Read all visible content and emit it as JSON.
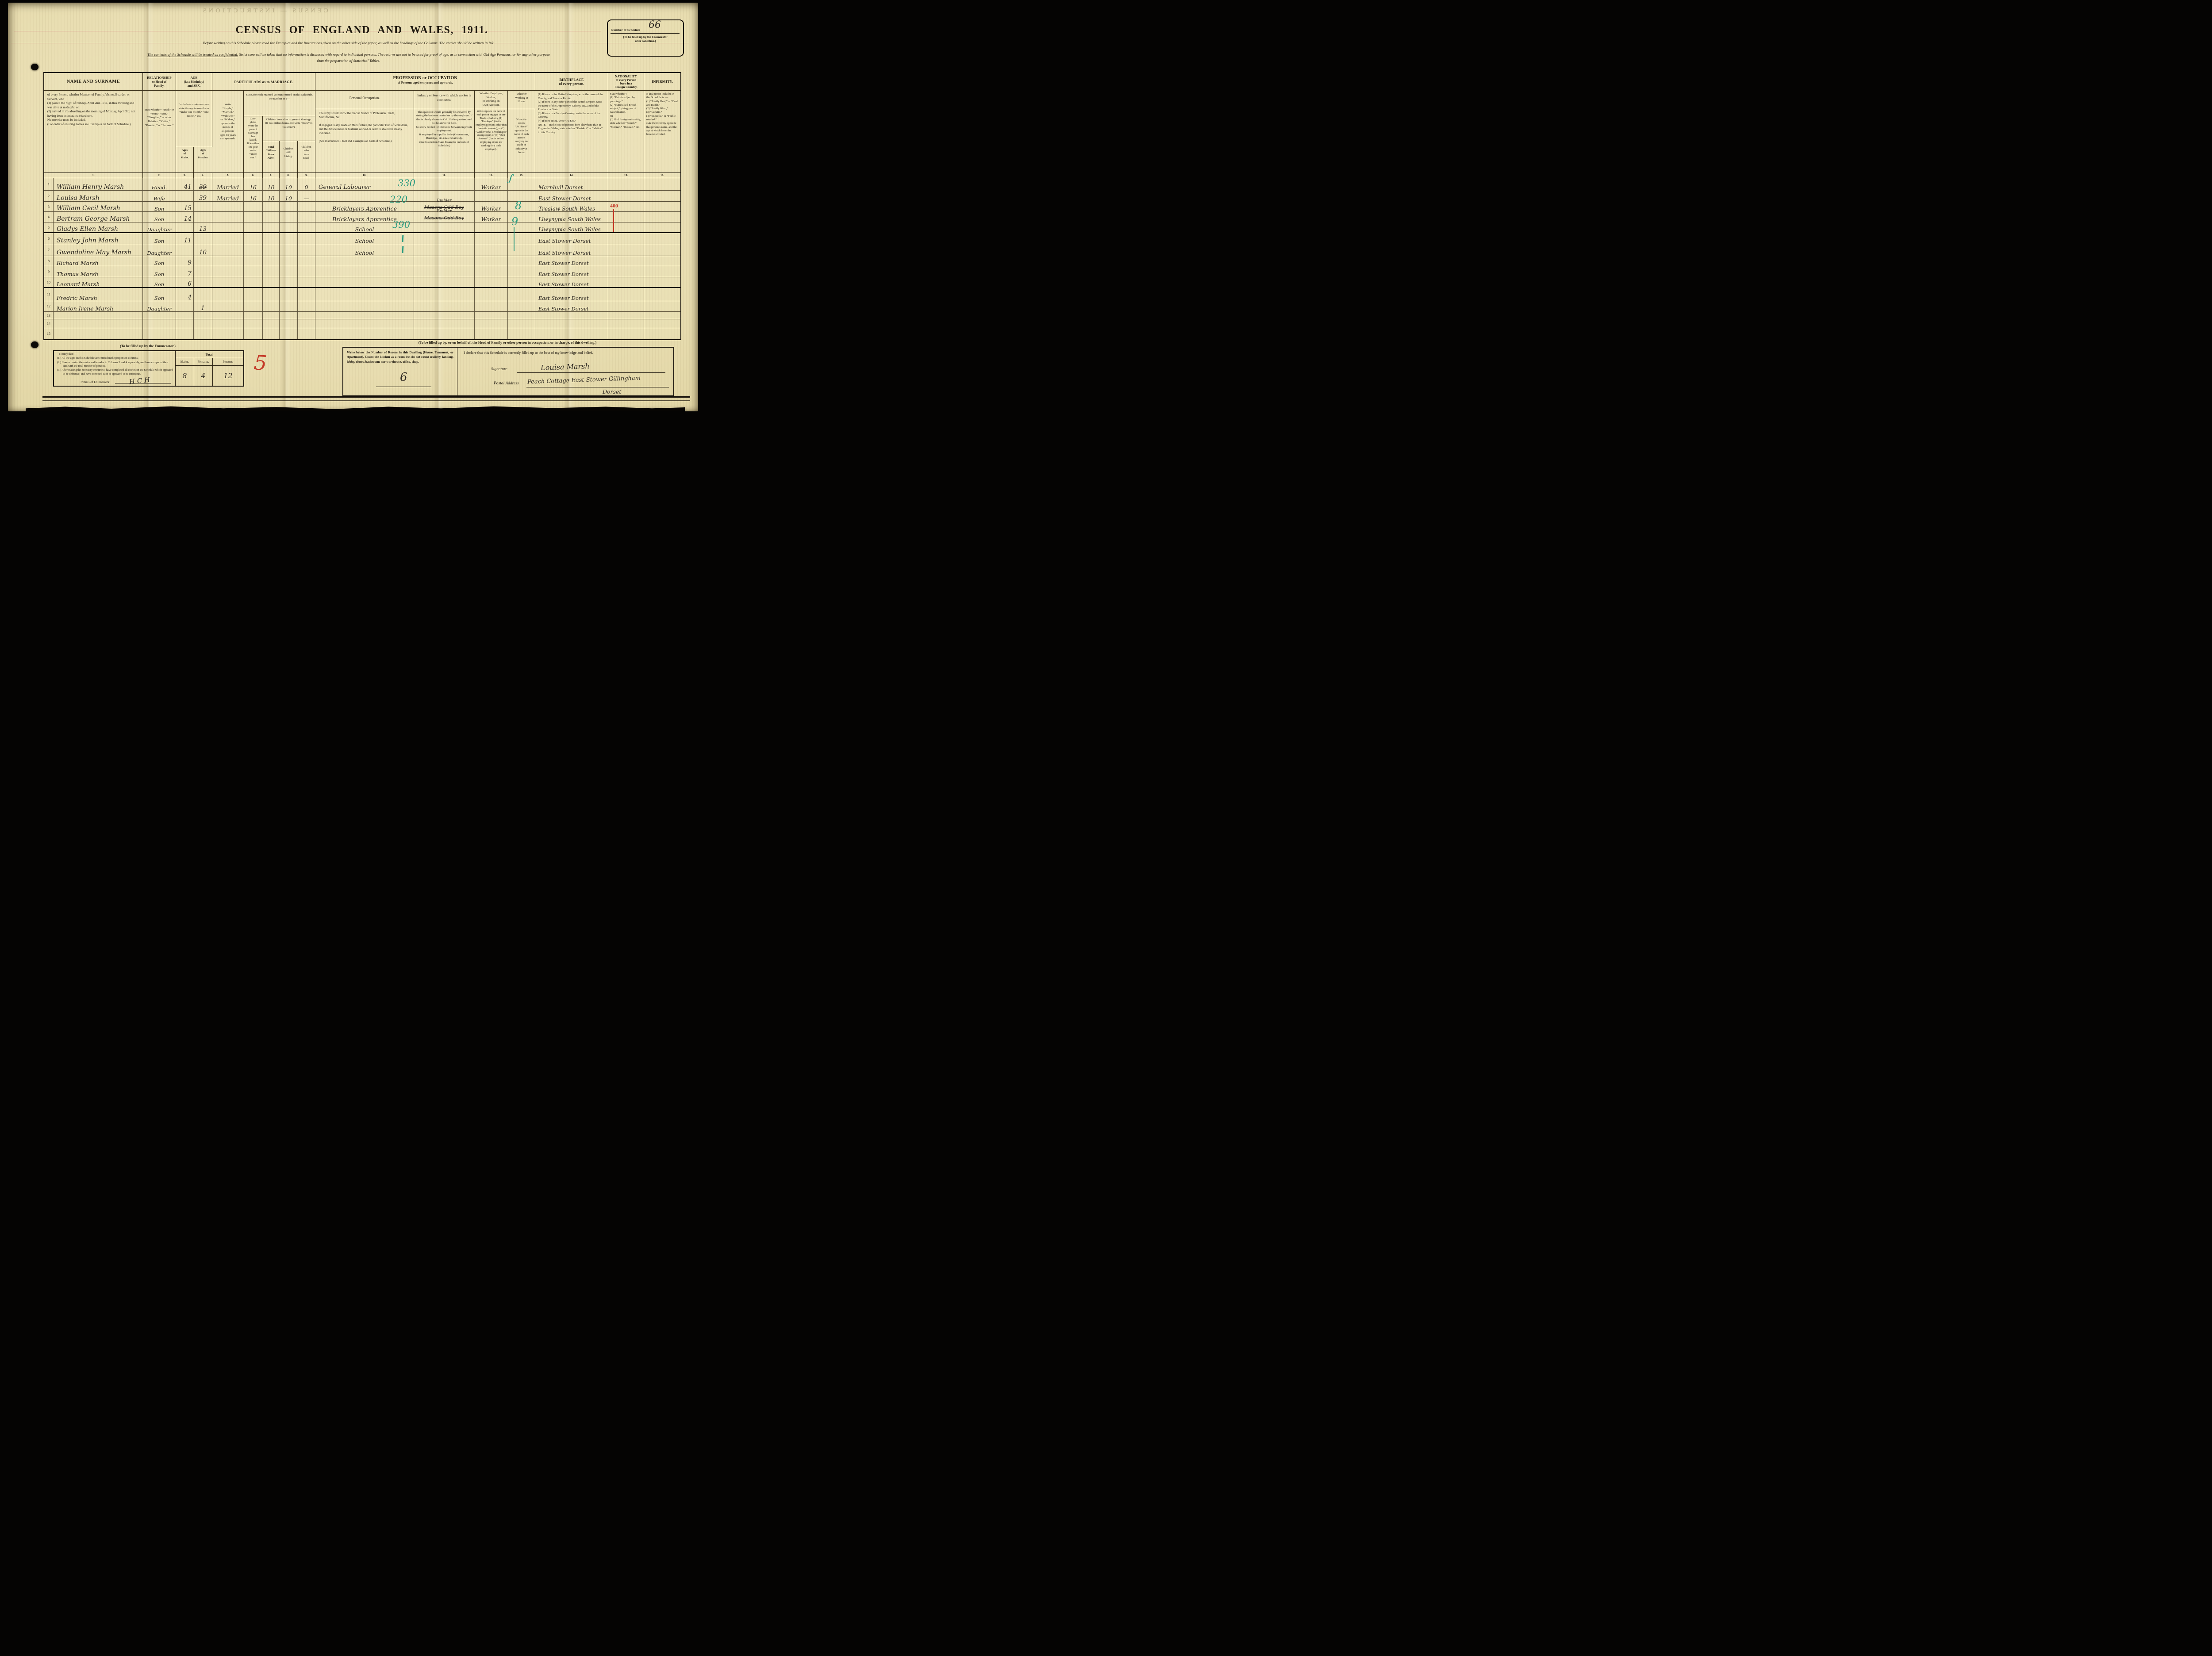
{
  "page": {
    "title": "CENSUS OF ENGLAND AND WALES, 1911.",
    "instructions_line1": "Before writing on this Schedule please read the Examples and the Instructions given on the other side of the paper, as well as the headings of the Columns.  The entries should be written in Ink.",
    "confidential_clause": "The contents of the Schedule will be treated as confidential.",
    "instructions_line2": "Strict care will be taken that no information is disclosed with regard to individual persons.  The returns are not to be used for proof of age, as in connection with Old Age Pensions, or for any other purpose",
    "instructions_line3": "than the preparation of Statistical Tables.",
    "schedule_box": {
      "label": "Number of Schedule",
      "value": "66",
      "note": "(To be filled up by the Enumerator\nafter collection.)"
    },
    "bleedthrough": "CENSUS — INSTRUCTIONS"
  },
  "header": {
    "col1_title": "NAME AND SURNAME",
    "col1_body": "of every Person, whether Member of Family, Visitor, Boarder, or Servant, who\n(1) passed the night of Sunday, April 2nd, 1911, in this dwelling and was alive at midnight, or\n(2) arrived in this dwelling on the morning of Monday, April 3rd, not having been enumerated elsewhere.\nNo one else must be included.\n(For order of entering names see Examples on back of Schedule.)",
    "col2_title": "RELATIONSHIP\nto Head of\nFamily.",
    "col2_body": "State whether “Head,” or “Wife,” “Son,” “Daughter,” or other Relative, “Visitor,” “Boarder,” or “Servant.”",
    "age_title": "AGE\n(last Birthday)\nand SEX.",
    "infants_note": "For Infants under one year state the age in months as “under one month,” “one month,” etc.",
    "ages_males": "Ages\nof\nMales.",
    "ages_females": "Ages\nof\nFemales.",
    "marriage_title": "PARTICULARS as to MARRIAGE.",
    "col5_body": "Write\n“Single,”\n“Married,”\n“Widower,”\nor “Widow,”\nopposite the\nnames of\nall persons\naged 15 years\nand upwards.",
    "married_woman_note": "State, for each Married Woman entered on this Schedule, the number of :—",
    "col6_body": "Com-\npleted\nyears the\npresent\nMarriage\nhas\nlasted.\nIf less than\none year\nwrite\n“under\none.”",
    "children_note": "Children born alive to present Marriage.\n(If no children born alive write “None” in Column 7).",
    "col7_label": "Total\nChildren\nBorn\nAlive.",
    "col8_label": "Children\nstill\nLiving.",
    "col9_label": "Children\nwho\nhave\nDied.",
    "occupation_title": "PROFESSION or OCCUPATION",
    "occupation_subtitle": "of Persons aged ten years and upwards.",
    "col10_title": "Personal Occupation.",
    "col10_body": "The reply should show the precise branch of Profession, Trade, Manufacture, &c.\n\nIf engaged in any Trade or Manufacture, the particular kind of work done, and the Article made or Material worked or dealt in should be clearly indicated.\n\n(See Instructions 1 to 8 and Examples on back of Schedule.)",
    "col11_title": "Industry or Service with which worker is connected.",
    "col11_body": "This question should generally be answered by stating the business carried on by the employer.  If this is clearly shown in Col. 10 the question need not be answered here.\nNo entry needed for Domestic Servants in private employment.\nIf employed by a public body (Government, Municipal, etc.) state what body.\n(See Instruction 9 and Examples on back of Schedule.)",
    "col12_title": "Whether Employer,\nWorker,\nor Working on\nOwn Account.",
    "col12_body": "Write opposite the name of each person engaged in any Trade or Industry, (1) “Employer” (that is employing persons other than domestic servants), or (2) “Worker” (that is working for an employer), or (3) “Own Account” (that is neither employing others nor working for a trade employer).",
    "col13_title": "Whether\nWorking at\nHome.",
    "col13_body": "Write the\nwords\n“At Home”\nopposite the\nname of each\nperson\ncarrying on\nTrade or\nIndustry at\nhome.",
    "col14_title": "BIRTHPLACE\nof every person.",
    "col14_body": "(1) If born in the United Kingdom, write the name of the County, and Town or Parish.\n(2) If born in any other part of the British Empire, write the name of the Dependency, Colony, etc., and of the Province or State.\n(3) If born in a Foreign Country, write the name of the Country.\n(4) If born at sea, write “At Sea.”\nNOTE.—In the case of persons born elsewhere than in England or Wales, state whether “Resident” or “Visitor” in this Country.",
    "col15_title": "NATIONALITY\nof every Person\nborn in a\nForeign Country.",
    "col15_body": "State whether :—\n(1) “British subject by parentage.”\n(2) “Naturalised British subject,” giving year of naturalisation.\nOr\n(3) If of foreign nationality, state whether “French,” “German,” “Russian,” etc.",
    "col16_title": "INFIRMITY.",
    "col16_body": "If any person included in this Schedule is :—\n(1) “Totally Deaf,” or “Deaf and Dumb,”\n(2) “Totally Blind,”\n(3) “Lunatic,”\n(4) “Imbecile,” or “Feeble-minded,”\nstate the infirmity opposite that person’s name, and the age at which he or she became afflicted."
  },
  "column_numbers": [
    "1.",
    "2.",
    "3.",
    "4.",
    "5.",
    "6.",
    "7.",
    "8.",
    "9.",
    "10.",
    "11.",
    "12.",
    "13.",
    "14.",
    "15.",
    "16."
  ],
  "rows": [
    {
      "n": "1",
      "name": "William Henry Marsh",
      "rel": "Head.",
      "age_m": "41",
      "age_f_struck": "39",
      "marr": "Married",
      "years": "16",
      "born": "10",
      "living": "10",
      "died": "0",
      "occ": "General Labourer",
      "occ_code": "330",
      "emp": "Worker",
      "emp_tick": true,
      "birth": "Marnhull Dorset"
    },
    {
      "n": "2",
      "name": "Louisa Marsh",
      "rel": "Wife",
      "age_f": "39",
      "marr": "Married",
      "years": "16",
      "born": "10",
      "living": "10",
      "died": "—",
      "birth": "East Stower Dorset"
    },
    {
      "n": "3",
      "name": "William Cecil Marsh",
      "rel": "Son",
      "age_m": "15",
      "occ": "Bricklayers Apprentice",
      "occ_code": "220",
      "ind_new": "Builder",
      "ind_struck": "Masons Odd Boy",
      "emp": "Worker",
      "home_code": "8",
      "birth": "Trealaw South Wales",
      "nat_code": "400",
      "nat_line": true
    },
    {
      "n": "4",
      "name": "Bertram George Marsh",
      "rel": "Son",
      "age_m": "14",
      "occ": "Bricklayers Apprentice",
      "ind_new": "Builder",
      "ind_struck": "Masons Odd Boy",
      "emp": "Worker",
      "birth": "Llwynypia South Wales"
    },
    {
      "n": "5",
      "name": "Gladys Ellen Marsh",
      "rel": "Daughter",
      "age_f": "13",
      "occ": "School",
      "occ_code": "390",
      "home_code": "9",
      "birth": "Llwynypia South Wales",
      "thick": true
    },
    {
      "n": "6",
      "name": "Stanley John Marsh",
      "rel": "Son",
      "age_m": "11",
      "occ": "School",
      "occ_stroke": true,
      "birth": "East Stower Dorset"
    },
    {
      "n": "7",
      "name": "Gwendoline May Marsh",
      "rel": "Daughter",
      "age_f": "10",
      "occ": "School",
      "occ_stroke": true,
      "birth": "East Stower Dorset"
    },
    {
      "n": "8",
      "name": "Richard Marsh",
      "rel": "Son",
      "age_m": "9",
      "birth": "East Stower Dorset"
    },
    {
      "n": "9",
      "name": "Thomas Marsh",
      "rel": "Son",
      "age_m": "7",
      "birth": "East Stower Dorset"
    },
    {
      "n": "10",
      "name": "Leonard Marsh",
      "rel": "Son",
      "age_m": "6",
      "birth": "East Stower Dorset",
      "thick": true
    },
    {
      "n": "11",
      "name": "Fredric Marsh",
      "rel": "Son",
      "age_m": "4",
      "birth": "East Stower Dorset"
    },
    {
      "n": "12",
      "name": "Marion Irene Marsh",
      "rel": "Daughter",
      "age_f": "1",
      "birth": "East Stower Dorset"
    },
    {
      "n": "13"
    },
    {
      "n": "14"
    },
    {
      "n": "15"
    }
  ],
  "enumerator": {
    "heading": "(To be filled up by the Enumerator.)",
    "certify_intro": "I certify that :—",
    "item1": "(1.) All the ages on this Schedule are entered in the proper sex columns.",
    "item2": "(2.) I have counted the males and females in Columns 3 and 4 separately, and have compared their sum with the total number of persons.",
    "item3": "(3.) After making the necessary enquiries I have completed all entries on the Schedule which appeared to be defective, and have corrected such as appeared to be erroneous.",
    "initials_label": "Initials of Enumerator",
    "initials_value": "H C H",
    "total_label": "Total.",
    "males_label": "Males.",
    "females_label": "Females.",
    "persons_label": "Persons.",
    "males_value": "8",
    "females_value": "4",
    "persons_value": "12",
    "red_mark": "5"
  },
  "household": {
    "heading": "(To be filled up by, or on behalf of, the Head of Family or other person in occupation, or in charge, of this dwelling.)",
    "rooms_text": "Write below the Number of Rooms in this Dwelling (House, Tenement, or Apartment). Count the kitchen as a room but do not count scullery, landing, lobby, closet, bathroom; nor warehouse, office, shop.",
    "rooms_value": "6",
    "declaration": "I declare that this Schedule is correctly filled up to the best of my knowledge and belief.",
    "signature_label": "Signature",
    "signature_value": "Louisa Marsh",
    "postal_label": "Postal Address",
    "postal_value": "Peach Cottage East Stower Gillingham",
    "postal_value2": "Dorset"
  },
  "ink_colors": {
    "green": "#2f9c80",
    "red": "#c43827"
  }
}
